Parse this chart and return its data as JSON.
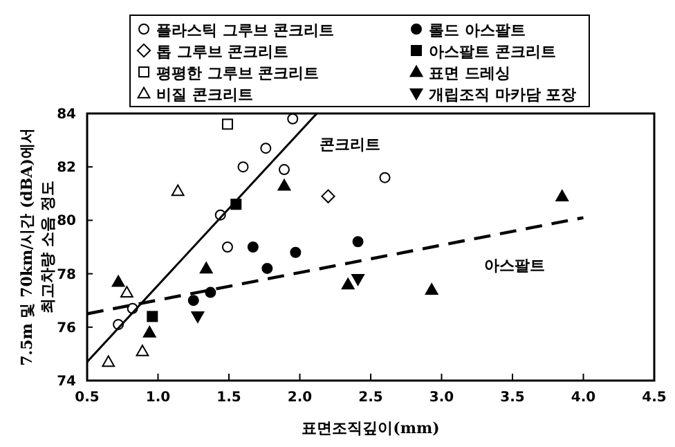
{
  "chart_data": {
    "type": "scatter",
    "xlabel": "표면조직깊이(mm)",
    "ylabel": "7.5m 및 70km/시간 (dBA)에서\n최고차량 소음 정도",
    "xlim": [
      0.5,
      4.5
    ],
    "ylim": [
      74,
      84
    ],
    "xticks": [
      {
        "value": 0.5,
        "label": "0.5"
      },
      {
        "value": 1.0,
        "label": "1.0"
      },
      {
        "value": 1.5,
        "label": "1.5"
      },
      {
        "value": 2.0,
        "label": "2.0"
      },
      {
        "value": 2.5,
        "label": "2.5"
      },
      {
        "value": 3.0,
        "label": "3.0"
      },
      {
        "value": 3.5,
        "label": "3.5"
      },
      {
        "value": 4.0,
        "label": "4.0"
      },
      {
        "value": 4.5,
        "label": "4.5"
      }
    ],
    "yticks": [
      74,
      76,
      78,
      80,
      82,
      84
    ],
    "grid": false,
    "legend": "top",
    "series": [
      {
        "name": "플라스틱 그루브 콘크리트",
        "marker": "circle",
        "color": "#ffffff",
        "x": [
          1.49,
          1.6,
          1.76,
          1.95,
          1.89,
          1.44,
          0.72,
          0.82,
          2.6
        ],
        "values": [
          79.0,
          82.0,
          82.7,
          83.8,
          81.9,
          80.2,
          76.1,
          76.7,
          81.6
        ]
      },
      {
        "name": "톱 그루브 콘크리트",
        "marker": "diamond",
        "color": "#ffffff",
        "x": [
          2.2
        ],
        "values": [
          80.9
        ]
      },
      {
        "name": "평평한 그루브 콘크리트",
        "marker": "square",
        "color": "#ffffff",
        "x": [
          1.49
        ],
        "values": [
          83.6
        ]
      },
      {
        "name": "비질 콘크리트",
        "marker": "triangle",
        "color": "#ffffff",
        "x": [
          1.14,
          0.78,
          0.65,
          0.89
        ],
        "values": [
          81.1,
          77.3,
          74.7,
          75.1
        ]
      },
      {
        "name": "롤드 아스팔트",
        "marker": "circle",
        "color": "#000000",
        "x": [
          1.67,
          1.77,
          1.97,
          1.37,
          1.25,
          2.41
        ],
        "values": [
          79.0,
          78.2,
          78.8,
          77.3,
          77.0,
          79.2
        ]
      },
      {
        "name": "아스팔트 콘크리트",
        "marker": "square",
        "color": "#000000",
        "x": [
          0.96,
          1.55
        ],
        "values": [
          76.4,
          80.6
        ]
      },
      {
        "name": "표면 드레싱",
        "marker": "triangle",
        "color": "#000000",
        "x": [
          0.72,
          1.34,
          0.94,
          1.89,
          2.34,
          2.93,
          3.85
        ],
        "values": [
          77.7,
          78.2,
          75.8,
          81.3,
          77.6,
          77.4,
          80.9
        ]
      },
      {
        "name": "개립조직 마카담 포장",
        "marker": "triangle-down",
        "color": "#000000",
        "x": [
          1.28,
          2.41
        ],
        "values": [
          76.4,
          77.8
        ]
      },
      {
        "type": "line",
        "name": "콘크리트",
        "line_style": "solid",
        "color": "#000000",
        "x": [
          0.5,
          2.12
        ],
        "values": [
          74.7,
          84.0
        ]
      },
      {
        "type": "line",
        "name": "아스팔트",
        "line_style": "dashed",
        "color": "#000000",
        "x": [
          0.5,
          4.0
        ],
        "values": [
          76.5,
          80.1
        ]
      }
    ]
  }
}
